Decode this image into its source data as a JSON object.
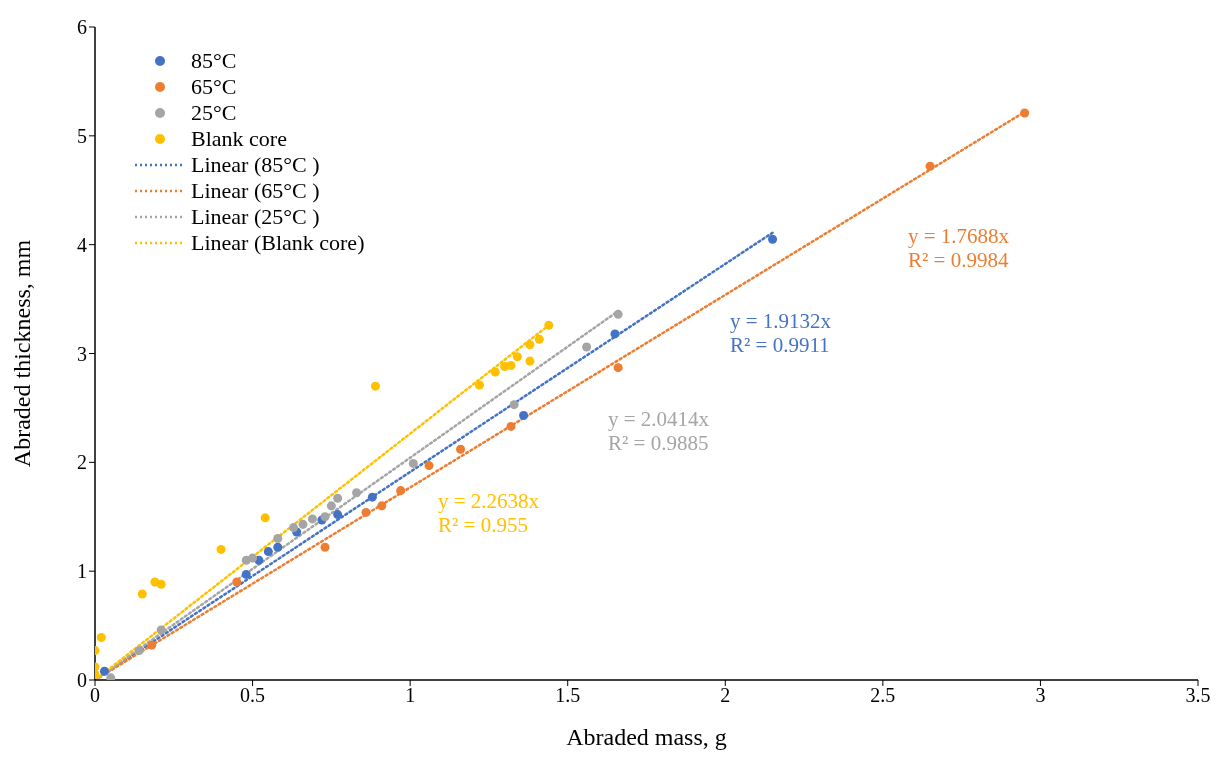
{
  "chart_data": {
    "type": "scatter",
    "xlabel": "Abraded mass, g",
    "ylabel": "Abraded thickness, mm",
    "xlim": [
      0,
      3.5
    ],
    "xticks": [
      0,
      0.5,
      1,
      1.5,
      2,
      2.5,
      3,
      3.5
    ],
    "ylim": [
      0,
      6
    ],
    "yticks": [
      0,
      1,
      2,
      3,
      4,
      5,
      6
    ],
    "grid": false,
    "legend": "top left",
    "marker": "circle",
    "series": [
      {
        "name": "85°C",
        "color": "#4472c4",
        "x": [
          0.03,
          0.48,
          0.52,
          0.55,
          0.58,
          0.64,
          0.72,
          0.77,
          0.88,
          1.36,
          1.65,
          2.15
        ],
        "values": [
          0.08,
          0.97,
          1.1,
          1.18,
          1.22,
          1.36,
          1.47,
          1.52,
          1.68,
          2.43,
          3.18,
          4.05
        ]
      },
      {
        "name": "65°C",
        "color": "#ed7d31",
        "x": [
          0.18,
          0.45,
          0.73,
          0.86,
          0.91,
          0.97,
          1.06,
          1.16,
          1.32,
          1.66,
          2.65,
          2.95
        ],
        "values": [
          0.32,
          0.9,
          1.22,
          1.54,
          1.6,
          1.74,
          1.97,
          2.12,
          2.33,
          2.87,
          4.72,
          5.21
        ]
      },
      {
        "name": "25°C",
        "color": "#a5a5a5",
        "x": [
          0.05,
          0.14,
          0.21,
          0.48,
          0.5,
          0.58,
          0.63,
          0.66,
          0.69,
          0.73,
          0.75,
          0.77,
          0.83,
          1.01,
          1.33,
          1.56,
          1.66
        ],
        "values": [
          0.02,
          0.27,
          0.46,
          1.1,
          1.12,
          1.3,
          1.4,
          1.43,
          1.48,
          1.5,
          1.6,
          1.67,
          1.72,
          1.99,
          2.53,
          3.06,
          3.36
        ]
      },
      {
        "name": "Blank core",
        "color": "#ffc000",
        "x": [
          0,
          0,
          0,
          0.02,
          0.15,
          0.19,
          0.21,
          0.4,
          0.54,
          0.89,
          1.22,
          1.27,
          1.3,
          1.32,
          1.34,
          1.38,
          1.38,
          1.41,
          1.44
        ],
        "values": [
          0.05,
          0.12,
          0.27,
          0.39,
          0.79,
          0.9,
          0.88,
          1.2,
          1.49,
          2.7,
          2.71,
          2.83,
          2.88,
          2.89,
          2.97,
          2.93,
          3.08,
          3.13,
          3.26
        ]
      },
      {
        "name": "Linear (85°C )",
        "type": "line",
        "line_style": "dotted",
        "marker": "none",
        "color": "#4472c4",
        "x": [
          0,
          2.15
        ],
        "values": [
          0,
          4.11
        ]
      },
      {
        "name": "Linear (65°C )",
        "type": "line",
        "line_style": "dotted",
        "marker": "none",
        "color": "#ed7d31",
        "x": [
          0,
          2.95
        ],
        "values": [
          0,
          5.22
        ]
      },
      {
        "name": "Linear (25°C )",
        "type": "line",
        "line_style": "dotted",
        "marker": "none",
        "color": "#a5a5a5",
        "x": [
          0,
          1.66
        ],
        "values": [
          0,
          3.39
        ]
      },
      {
        "name": "Linear (Blank core)",
        "type": "line",
        "line_style": "dotted",
        "marker": "none",
        "color": "#ffc000",
        "x": [
          0,
          1.44
        ],
        "values": [
          0,
          3.26
        ]
      }
    ],
    "annotations": [
      "y = 1.9132x\nR² = 0.9911",
      "y = 1.7688x\nR² = 0.9984",
      "y = 2.0414x\nR² = 0.9885",
      "y = 2.2638x\nR² = 0.955"
    ]
  }
}
